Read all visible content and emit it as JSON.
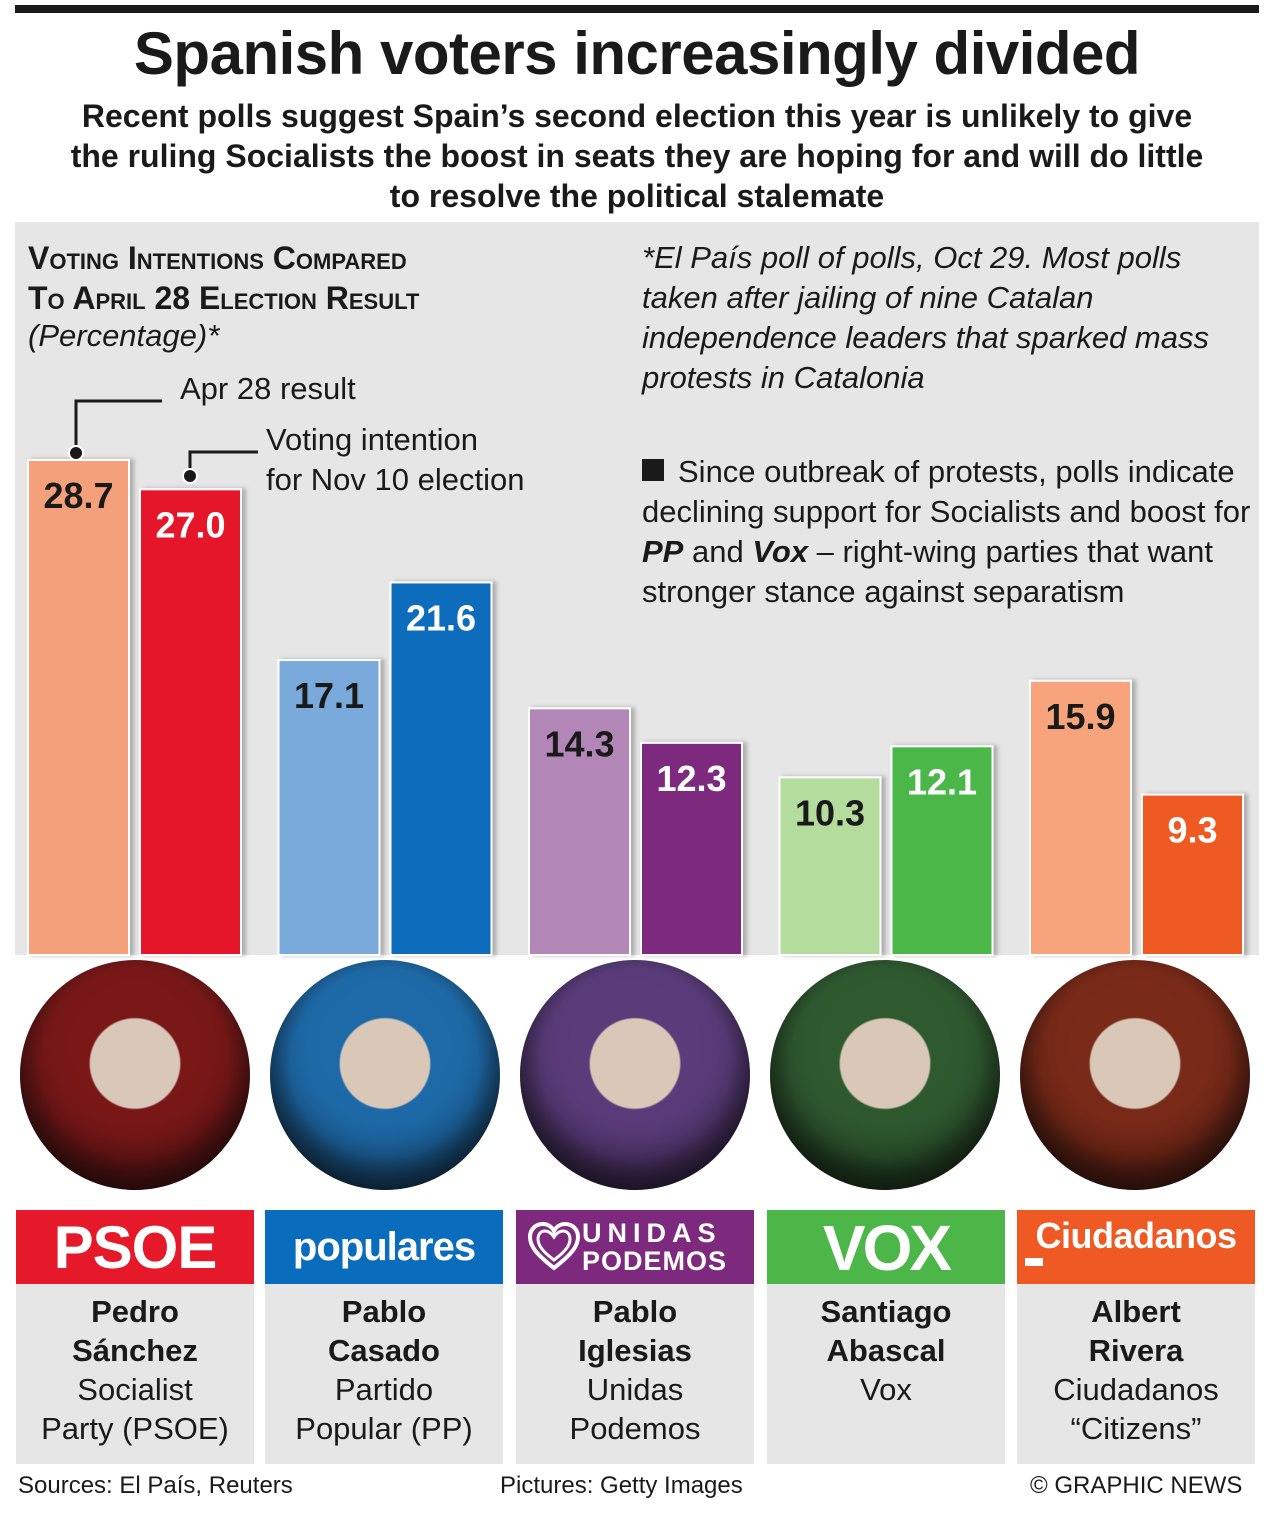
{
  "title": "Spanish voters increasingly divided",
  "subtitle": "Recent polls suggest Spain’s second election this year is unlikely to give the ruling Socialists the boost in seats they are hoping for and will do little to resolve the political stalemate",
  "chart_heading_1": "Voting Intentions Compared",
  "chart_heading_2": "To April 28 Election Result",
  "chart_unit": "(Percentage)*",
  "note": "*El País poll of polls, Oct 29. Most polls taken after jailing of nine Catalan independence leaders that sparked mass protests in Catalonia",
  "note2_a": "Since outbreak of protests, polls indicate declining support for Socialists and boost for ",
  "note2_pp": "PP",
  "note2_and": " and ",
  "note2_vox": "Vox",
  "note2_b": " – right-wing parties that want stronger stance against separatism",
  "legend": {
    "apr": "Apr 28 result",
    "nov_1": "Voting intention",
    "nov_2": "for Nov 10 election"
  },
  "chart_data": {
    "type": "bar",
    "categories": [
      "PSOE",
      "PP",
      "Unidas Podemos",
      "Vox",
      "Ciudadanos"
    ],
    "series": [
      {
        "name": "Apr 28 result",
        "values": [
          28.7,
          17.1,
          14.3,
          10.3,
          15.9
        ]
      },
      {
        "name": "Voting intention for Nov 10 election",
        "values": [
          27.0,
          21.6,
          12.3,
          12.1,
          9.3
        ]
      }
    ],
    "labels": {
      "apr": [
        "28.7",
        "17.1",
        "14.3",
        "10.3",
        "15.9"
      ],
      "nov": [
        "27.0",
        "21.6",
        "12.3",
        "12.1",
        "9.3"
      ]
    },
    "ylim": [
      0,
      28.7
    ],
    "colors": {
      "apr": [
        "#f4a07a",
        "#7aa9dc",
        "#b287b8",
        "#b4dc9c",
        "#f7a47c"
      ],
      "nov": [
        "#e6192b",
        "#0a6cbc",
        "#7d2a7e",
        "#4cb748",
        "#ef5a24"
      ],
      "label_apr": [
        "#1a1a1a",
        "#1a1a1a",
        "#1a1a1a",
        "#1a1a1a",
        "#1a1a1a"
      ],
      "label_nov": [
        "#ffffff",
        "#ffffff",
        "#ffffff",
        "#ffffff",
        "#ffffff"
      ]
    }
  },
  "parties": [
    {
      "logo": "PSOE",
      "name_1": "Pedro",
      "name_2": "Sánchez",
      "party_1": "Socialist",
      "party_2": "Party (PSOE)",
      "color": "#e6192b",
      "tint": "#7a1818"
    },
    {
      "logo": "populares",
      "name_1": "Pablo",
      "name_2": "Casado",
      "party_1": "Partido",
      "party_2": "Popular (PP)",
      "color": "#0a6cbc",
      "tint": "#1e6aa8"
    },
    {
      "logo_1": "UNIDAS",
      "logo_2": "PODEMOS",
      "name_1": "Pablo",
      "name_2": "Iglesias",
      "party_1": "Unidas",
      "party_2": "Podemos",
      "color": "#7d2a7e",
      "tint": "#5a3c7a"
    },
    {
      "logo": "VOX",
      "name_1": "Santiago",
      "name_2": "Abascal",
      "party_1": "Vox",
      "color": "#4cb748",
      "tint": "#2f5a30"
    },
    {
      "logo": "Ciudadanos",
      "name_1": "Albert",
      "name_2": "Rivera",
      "party_1": "Ciudadanos",
      "party_2": "“Citizens”",
      "color": "#ef5a24",
      "tint": "#7a2a18"
    }
  ],
  "footer": {
    "sources": "Sources: El País, Reuters",
    "pictures": "Pictures: Getty Images",
    "credit": "© GRAPHIC NEWS"
  }
}
